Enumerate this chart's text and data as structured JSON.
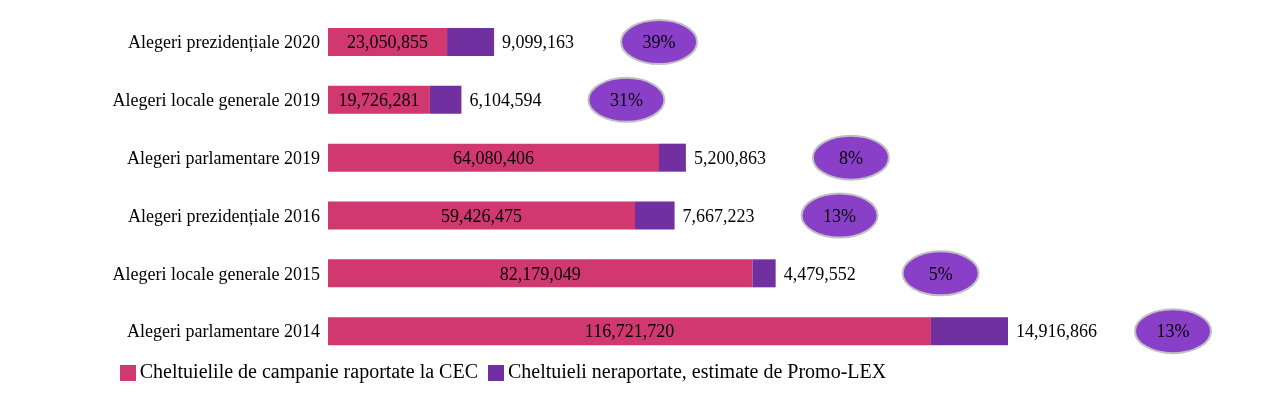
{
  "chart_data": {
    "type": "bar",
    "orientation": "horizontal",
    "stacked": true,
    "legend": "bottom",
    "categories": [
      "Alegeri prezidențiale 2020",
      "Alegeri locale generale 2019",
      "Alegeri parlamentare 2019",
      "Alegeri prezidențiale 2016",
      "Alegeri locale generale 2015",
      "Alegeri parlamentare 2014"
    ],
    "series": [
      {
        "name": "Cheltuielile de campanie raportate la CEC",
        "color": "#d1386f",
        "values": [
          23050855,
          19726281,
          64080406,
          59426475,
          82179049,
          116721720
        ],
        "value_labels": [
          "23,050,855",
          "19,726,281",
          "64,080,406",
          "59,426,475",
          "82,179,049",
          "116,721,720"
        ]
      },
      {
        "name": "Cheltuieli neraportate, estimate de Promo-LEX",
        "color": "#7030a0",
        "values": [
          9099163,
          6104594,
          5200863,
          7667223,
          4479552,
          14916866
        ],
        "value_labels": [
          "9,099,163",
          "6,104,594",
          "5,200,863",
          "7,667,223",
          "4,479,552",
          "14,916,866"
        ]
      }
    ],
    "annotations": [
      "39%",
      "31%",
      "8%",
      "13%",
      "5%",
      "13%"
    ]
  }
}
